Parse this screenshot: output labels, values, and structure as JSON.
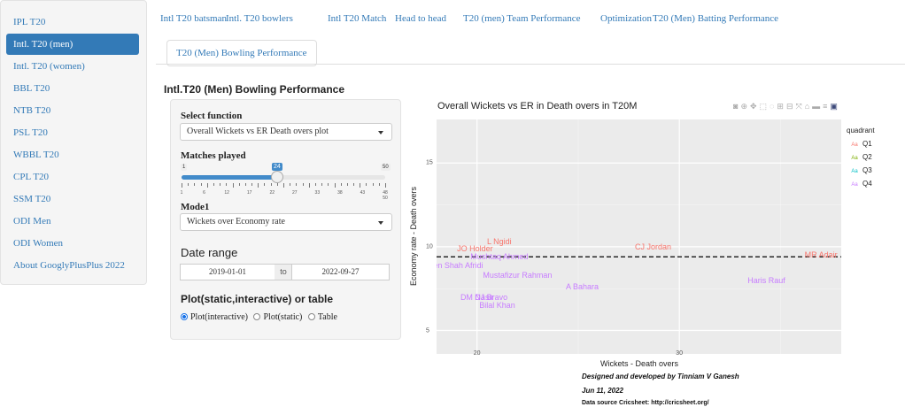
{
  "sidebar": {
    "items": [
      {
        "label": "IPL T20",
        "active": false
      },
      {
        "label": "Intl. T20 (men)",
        "active": true
      },
      {
        "label": "Intl. T20 (women)",
        "active": false
      },
      {
        "label": "BBL T20",
        "active": false
      },
      {
        "label": "NTB T20",
        "active": false
      },
      {
        "label": "PSL T20",
        "active": false
      },
      {
        "label": "WBBL T20",
        "active": false
      },
      {
        "label": "CPL T20",
        "active": false
      },
      {
        "label": "SSM T20",
        "active": false
      },
      {
        "label": "ODI Men",
        "active": false
      },
      {
        "label": "ODI Women",
        "active": false
      },
      {
        "label": "About GooglyPlusPlus 2022",
        "active": false
      }
    ]
  },
  "tabs": [
    "Intl T20 batsman",
    "Intl. T20 bowlers",
    "Intl T20 Match",
    "Head to head",
    "T20 (men) Team Performance",
    "Optimization",
    "T20 (Men) Batting Performance",
    "T20 (Men) Bowling Performance"
  ],
  "section_title": "Intl.T20 (Men) Bowling Performance",
  "controls": {
    "select_function_label": "Select function",
    "select_function_value": "Overall Wickets vs ER Death overs plot",
    "matches_played_label": "Matches played",
    "slider": {
      "min": 1,
      "max": 50,
      "value": 24,
      "tick_labels": [
        "1",
        "6",
        "12",
        "17",
        "22",
        "27",
        "33",
        "38",
        "43",
        "48 50"
      ]
    },
    "mode_label": "Mode1",
    "mode_value": "Wickets over Economy rate",
    "date_range_label": "Date range",
    "date_from": "2019-01-01",
    "date_to_sep": "to",
    "date_to": "2022-09-27",
    "plot_type_label": "Plot(static,interactive) or table",
    "plot_options": [
      "Plot(interactive)",
      "Plot(static)",
      "Table"
    ],
    "plot_selected": "Plot(interactive)"
  },
  "modebar_icons": [
    "camera-icon",
    "zoom-icon",
    "pan-icon",
    "box-select-icon",
    "lasso-icon",
    "zoom-in-icon",
    "zoom-out-icon",
    "autoscale-icon",
    "home-icon",
    "spike-icon",
    "compare-icon",
    "plotly-logo-icon"
  ],
  "chart_data": {
    "type": "scatter",
    "title": "Overall Wickets vs ER in Death overs in T20M",
    "xlabel": "Wickets - Death overs",
    "ylabel": "Economy rate - Death overs",
    "xlim": [
      18,
      38
    ],
    "ylim": [
      3.6,
      17.6
    ],
    "xticks": [
      20,
      30
    ],
    "yticks": [
      5,
      10,
      15
    ],
    "grid": true,
    "reference_line": {
      "y": 9.4,
      "style": "dashed"
    },
    "legend": {
      "title": "quadrant",
      "position": "right",
      "key_glyph": "Aa",
      "entries": [
        {
          "name": "Q1",
          "color": "#F8766D"
        },
        {
          "name": "Q2",
          "color": "#7CAE00"
        },
        {
          "name": "Q3",
          "color": "#00BFC4"
        },
        {
          "name": "Q4",
          "color": "#C77CFF"
        }
      ]
    },
    "points": [
      {
        "label": "L Ngidi",
        "x": 21.1,
        "y": 10.3,
        "quadrant": "Q1"
      },
      {
        "label": "JO Holder",
        "x": 19.9,
        "y": 9.9,
        "quadrant": "Q1"
      },
      {
        "label": "CJ Jordan",
        "x": 28.7,
        "y": 10.0,
        "quadrant": "Q1"
      },
      {
        "label": "MR Adair",
        "x": 37.0,
        "y": 9.5,
        "quadrant": "Q1"
      },
      {
        "label": "Mushtaq Ahmed",
        "x": 21.1,
        "y": 9.4,
        "quadrant": "Q4"
      },
      {
        "label": "Shaheen Shah Afridi",
        "x": 18.5,
        "y": 8.9,
        "quadrant": "Q4"
      },
      {
        "label": "Mustafizur Rahman",
        "x": 22.0,
        "y": 8.3,
        "quadrant": "Q4"
      },
      {
        "label": "A Bahara",
        "x": 25.2,
        "y": 7.6,
        "quadrant": "Q4"
      },
      {
        "label": "Haris Rauf",
        "x": 34.3,
        "y": 8.0,
        "quadrant": "Q4"
      },
      {
        "label": "DM Nasir",
        "x": 20.0,
        "y": 7.0,
        "quadrant": "Q4"
      },
      {
        "label": "DJ Bravo",
        "x": 20.7,
        "y": 7.0,
        "quadrant": "Q4"
      },
      {
        "label": "Bilal Khan",
        "x": 21.0,
        "y": 6.5,
        "quadrant": "Q4"
      }
    ]
  },
  "credits": {
    "line1": "Designed and developed by Tinniam V Ganesh",
    "line2": "Jun 11, 2022",
    "line3": "Data source Cricsheet: http://cricsheet.org/"
  }
}
